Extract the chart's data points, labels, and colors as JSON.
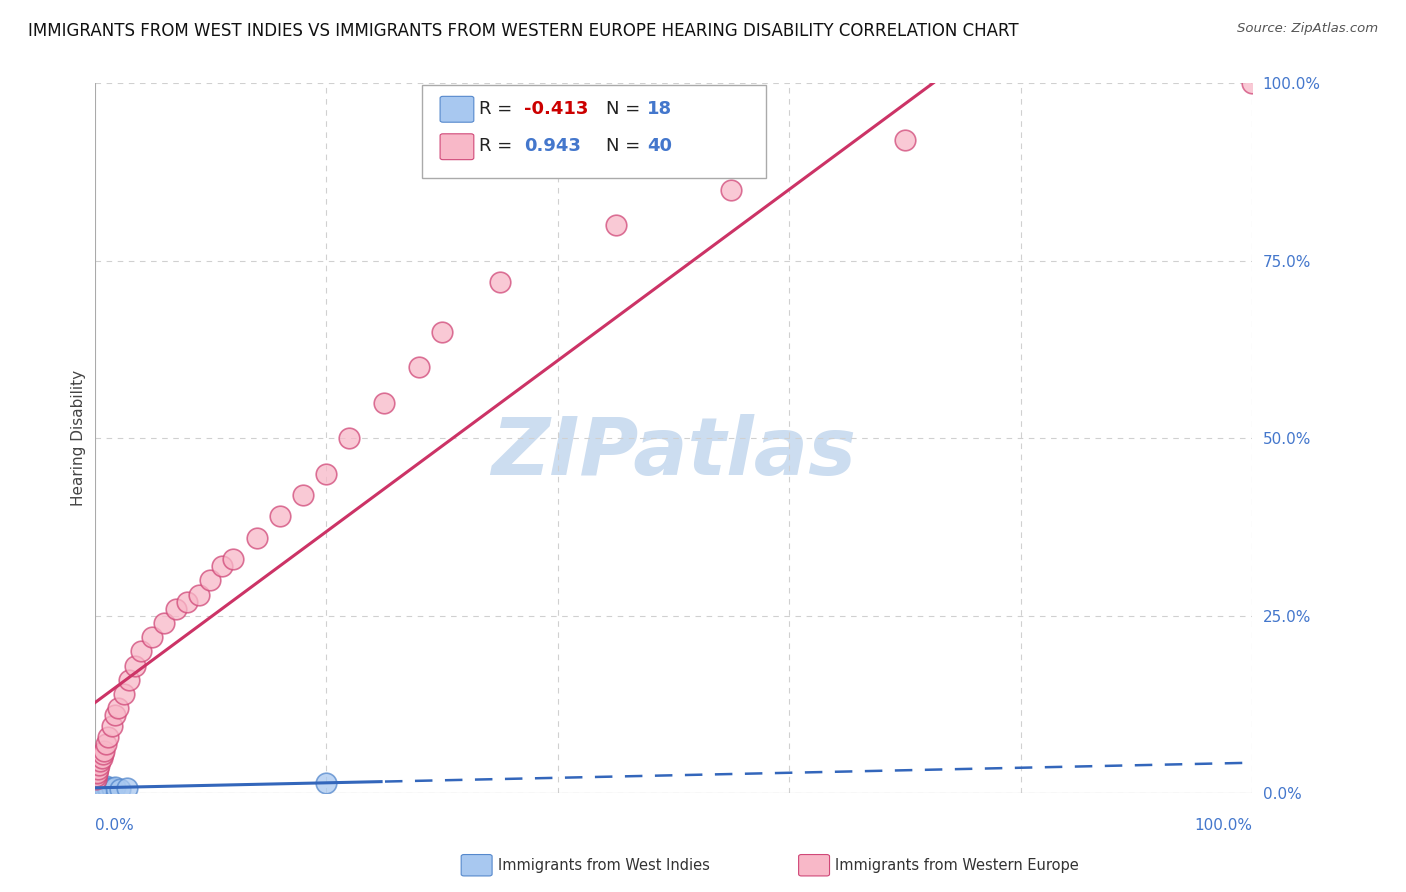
{
  "title": "IMMIGRANTS FROM WEST INDIES VS IMMIGRANTS FROM WESTERN EUROPE HEARING DISABILITY CORRELATION CHART",
  "source": "Source: ZipAtlas.com",
  "ylabel": "Hearing Disability",
  "legend_entries": [
    {
      "label": "Immigrants from West Indies",
      "R": -0.413,
      "N": 18,
      "color": "#a8c8f0",
      "edge_color": "#5588cc"
    },
    {
      "label": "Immigrants from Western Europe",
      "R": 0.943,
      "N": 40,
      "color": "#f8b8c8",
      "edge_color": "#d04878"
    }
  ],
  "west_indies_x": [
    0.1,
    0.15,
    0.2,
    0.25,
    0.3,
    0.35,
    0.4,
    0.5,
    0.6,
    0.8,
    1.0,
    1.2,
    1.5,
    1.8,
    2.2,
    2.8,
    20.0,
    0.1
  ],
  "west_indies_y": [
    0.5,
    0.8,
    1.0,
    0.6,
    0.9,
    0.7,
    1.2,
    0.8,
    1.0,
    0.9,
    1.1,
    0.8,
    0.7,
    0.9,
    0.6,
    0.8,
    1.5,
    0.4
  ],
  "western_europe_x": [
    0.1,
    0.15,
    0.2,
    0.25,
    0.3,
    0.4,
    0.5,
    0.6,
    0.7,
    0.8,
    1.0,
    1.2,
    1.5,
    1.8,
    2.0,
    2.5,
    3.0,
    3.5,
    4.0,
    5.0,
    6.0,
    7.0,
    8.0,
    9.0,
    10.0,
    11.0,
    12.0,
    14.0,
    16.0,
    18.0,
    20.0,
    22.0,
    25.0,
    28.0,
    30.0,
    35.0,
    45.0,
    55.0,
    70.0,
    100.0
  ],
  "western_europe_y": [
    2.0,
    2.5,
    3.0,
    2.8,
    3.5,
    4.0,
    4.5,
    5.0,
    5.5,
    6.0,
    7.0,
    8.0,
    9.5,
    11.0,
    12.0,
    14.0,
    16.0,
    18.0,
    20.0,
    22.0,
    24.0,
    26.0,
    27.0,
    28.0,
    30.0,
    32.0,
    33.0,
    36.0,
    39.0,
    42.0,
    45.0,
    50.0,
    55.0,
    60.0,
    65.0,
    72.0,
    80.0,
    85.0,
    92.0,
    100.0
  ],
  "background_color": "#ffffff",
  "grid_color": "#d0d0d0",
  "blue_line_color": "#3366bb",
  "pink_line_color": "#cc3366",
  "title_fontsize": 12,
  "watermark_text": "ZIPatlas",
  "watermark_color": "#ccddf0",
  "xmin": 0,
  "xmax": 100,
  "ymin": 0,
  "ymax": 100,
  "ytick_positions": [
    0,
    25,
    50,
    75,
    100
  ],
  "ytick_labels": [
    "0.0%",
    "25.0%",
    "50.0%",
    "75.0%",
    "100.0%"
  ],
  "xtick_left_label": "0.0%",
  "xtick_right_label": "100.0%"
}
